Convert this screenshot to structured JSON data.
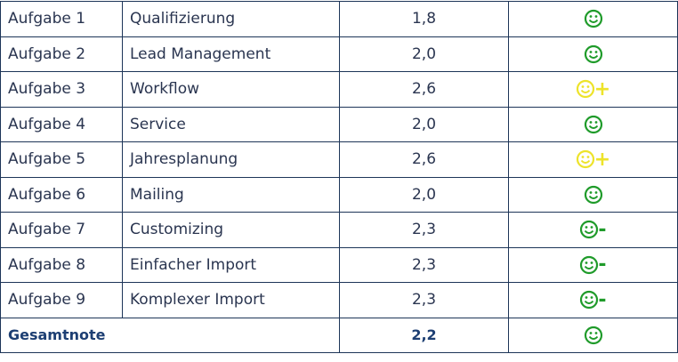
{
  "table": {
    "rows": [
      {
        "task": "Aufgabe 1",
        "topic": "Qualifizierung",
        "grade": "1,8",
        "icon": {
          "color": "#1f9b2a"
        }
      },
      {
        "task": "Aufgabe 2",
        "topic": "Lead Management",
        "grade": "2,0",
        "icon": {
          "color": "#1f9b2a"
        }
      },
      {
        "task": "Aufgabe 3",
        "topic": "Workflow",
        "grade": "2,6",
        "icon": {
          "color": "#ede32a",
          "modifier": "+"
        }
      },
      {
        "task": "Aufgabe 4",
        "topic": "Service",
        "grade": "2,0",
        "icon": {
          "color": "#1f9b2a"
        }
      },
      {
        "task": "Aufgabe 5",
        "topic": "Jahresplanung",
        "grade": "2,6",
        "icon": {
          "color": "#ede32a",
          "modifier": "+"
        }
      },
      {
        "task": "Aufgabe 6",
        "topic": "Mailing",
        "grade": "2,0",
        "icon": {
          "color": "#1f9b2a"
        }
      },
      {
        "task": "Aufgabe 7",
        "topic": "Customizing",
        "grade": "2,3",
        "icon": {
          "color": "#1f9b2a",
          "modifier": "-"
        }
      },
      {
        "task": "Aufgabe 8",
        "topic": "Einfacher Import",
        "grade": "2,3",
        "icon": {
          "color": "#1f9b2a",
          "modifier": "-"
        }
      },
      {
        "task": "Aufgabe 9",
        "topic": "Komplexer Import",
        "grade": "2,3",
        "icon": {
          "color": "#1f9b2a",
          "modifier": "-"
        }
      }
    ],
    "total": {
      "label": "Gesamtnote",
      "grade": "2,2",
      "icon": {
        "color": "#1f9b2a"
      }
    }
  }
}
